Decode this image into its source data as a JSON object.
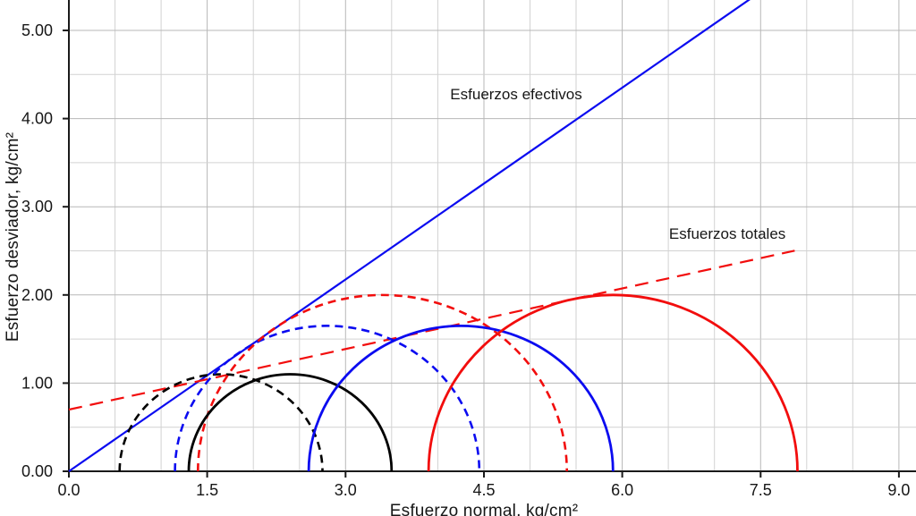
{
  "chart_data": {
    "type": "line",
    "title": "",
    "xlabel": "Esfuerzo normal, kg/cm²",
    "ylabel": "Esfuerzo desviador, kg/cm²",
    "xlim": [
      0,
      9.19
    ],
    "ylim": [
      0,
      5.35
    ],
    "grid": {
      "step": 0.5,
      "x_major_step": 1.5,
      "y_major_step": 1.0,
      "minor_color": "#d2d2d2",
      "major_color": "#b7b7b7",
      "axis_color": "#1a1a1a"
    },
    "x_ticks": [
      {
        "value": 0.0,
        "label": "0.0"
      },
      {
        "value": 1.5,
        "label": "1.5"
      },
      {
        "value": 3.0,
        "label": "3.0"
      },
      {
        "value": 4.5,
        "label": "4.5"
      },
      {
        "value": 6.0,
        "label": "6.0"
      },
      {
        "value": 7.5,
        "label": "7.5"
      },
      {
        "value": 9.0,
        "label": "9.0"
      }
    ],
    "y_ticks": [
      {
        "value": 0,
        "label": "0.00"
      },
      {
        "value": 1,
        "label": "1.00"
      },
      {
        "value": 2,
        "label": "2.00"
      },
      {
        "value": 3,
        "label": "3.00"
      },
      {
        "value": 4,
        "label": "4.00"
      },
      {
        "value": 5,
        "label": "5.00"
      }
    ],
    "mohr_circles": [
      {
        "id": "efectivo-1",
        "stress_type": "efectivo",
        "style": "dashed",
        "color": "#000000",
        "sigma3": 0.55,
        "sigma1": 2.75
      },
      {
        "id": "efectivo-2",
        "stress_type": "efectivo",
        "style": "dashed",
        "color": "#0b0bf0",
        "sigma3": 1.15,
        "sigma1": 4.45
      },
      {
        "id": "efectivo-3",
        "stress_type": "efectivo",
        "style": "dashed",
        "color": "#f20d0d",
        "sigma3": 1.4,
        "sigma1": 5.4
      },
      {
        "id": "total-1",
        "stress_type": "total",
        "style": "solid",
        "color": "#000000",
        "sigma3": 1.3,
        "sigma1": 3.5
      },
      {
        "id": "total-2",
        "stress_type": "total",
        "style": "solid",
        "color": "#0b0bf0",
        "sigma3": 2.6,
        "sigma1": 5.9
      },
      {
        "id": "total-3",
        "stress_type": "total",
        "style": "solid",
        "color": "#f20d0d",
        "sigma3": 3.9,
        "sigma1": 7.9
      }
    ],
    "envelopes": [
      {
        "id": "envolvente-efectivos",
        "label": "Esfuerzos efectivos",
        "color": "#0b0bf0",
        "style": "solid",
        "cohesion": 0.0,
        "slope": 0.725,
        "x_start": 0.0,
        "x_end": 7.65
      },
      {
        "id": "envolvente-totales",
        "label": "Esfuerzos totales",
        "color": "#f20d0d",
        "style": "dashed",
        "cohesion": 0.7,
        "slope": 0.229,
        "x_start": 0.0,
        "x_end": 7.87
      }
    ],
    "annotations": [
      {
        "id": "label-esfuerzos-efectivos",
        "text": "Esfuerzos efectivos",
        "x": 4.85,
        "y": 4.28
      },
      {
        "id": "label-esfuerzos-totales",
        "text": "Esfuerzos totales",
        "x": 7.14,
        "y": 2.7
      }
    ],
    "text_color": "#161616"
  }
}
